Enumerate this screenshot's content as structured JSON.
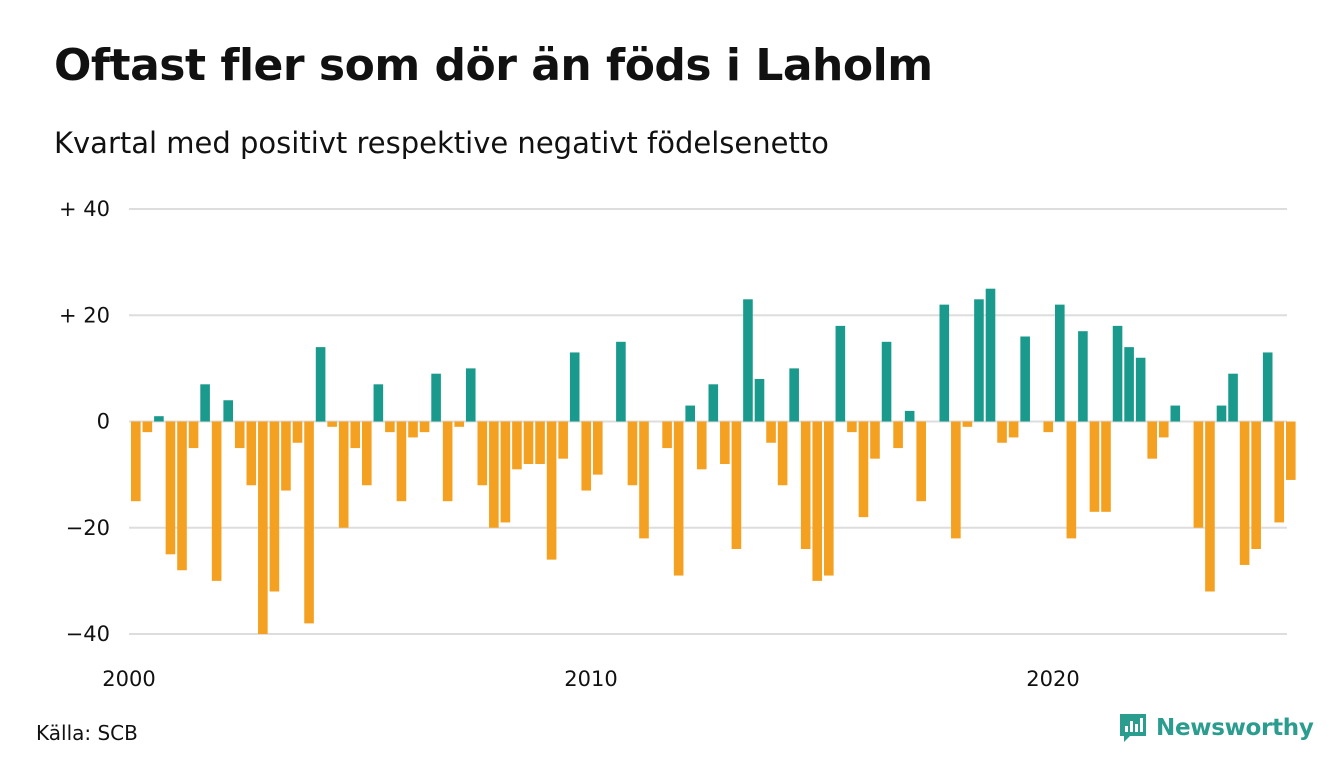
{
  "title": "Oftast fler som dör än föds i Laholm",
  "subtitle": "Kvartal med positivt respektive negativt födelsenetto",
  "source": "Källa: SCB",
  "logo_text": "Newsworthy",
  "colors": {
    "positive": "#1a9a8c",
    "negative": "#f4a020",
    "grid": "#dddddd",
    "logo": "#2a9d8f"
  },
  "chart_data": {
    "type": "bar",
    "start_year": 2000,
    "periods_per_year": 4,
    "ylim": [
      -40,
      40
    ],
    "yticks": [
      {
        "value": 40,
        "label": "+ 40"
      },
      {
        "value": 20,
        "label": "+ 20"
      },
      {
        "value": 0,
        "label": "0"
      },
      {
        "value": -20,
        "label": "−20"
      },
      {
        "value": -40,
        "label": "−40"
      }
    ],
    "xticks": [
      {
        "year": 2000,
        "label": "2000"
      },
      {
        "year": 2010,
        "label": "2010"
      },
      {
        "year": 2020,
        "label": "2020"
      }
    ],
    "values": [
      -15,
      -2,
      1,
      -25,
      -28,
      -5,
      7,
      -30,
      4,
      -5,
      -12,
      -40,
      -32,
      -13,
      -4,
      -38,
      14,
      -1,
      -20,
      -5,
      -12,
      7,
      -2,
      -15,
      -3,
      -2,
      9,
      -15,
      -1,
      10,
      -12,
      -20,
      -19,
      -9,
      -8,
      -8,
      -26,
      -7,
      13,
      -13,
      -10,
      0,
      15,
      -12,
      -22,
      0,
      -5,
      -29,
      3,
      -9,
      7,
      -8,
      -24,
      23,
      8,
      -4,
      -12,
      10,
      -24,
      -30,
      -29,
      18,
      -2,
      -18,
      -7,
      15,
      -5,
      2,
      -15,
      0,
      22,
      -22,
      -1,
      23,
      25,
      -4,
      -3,
      16,
      0,
      -2,
      22,
      -22,
      17,
      -17,
      -17,
      18,
      14,
      12,
      -7,
      -3,
      3,
      0,
      -20,
      -32,
      3,
      9,
      -27,
      -24,
      13,
      -19,
      -11
    ]
  }
}
